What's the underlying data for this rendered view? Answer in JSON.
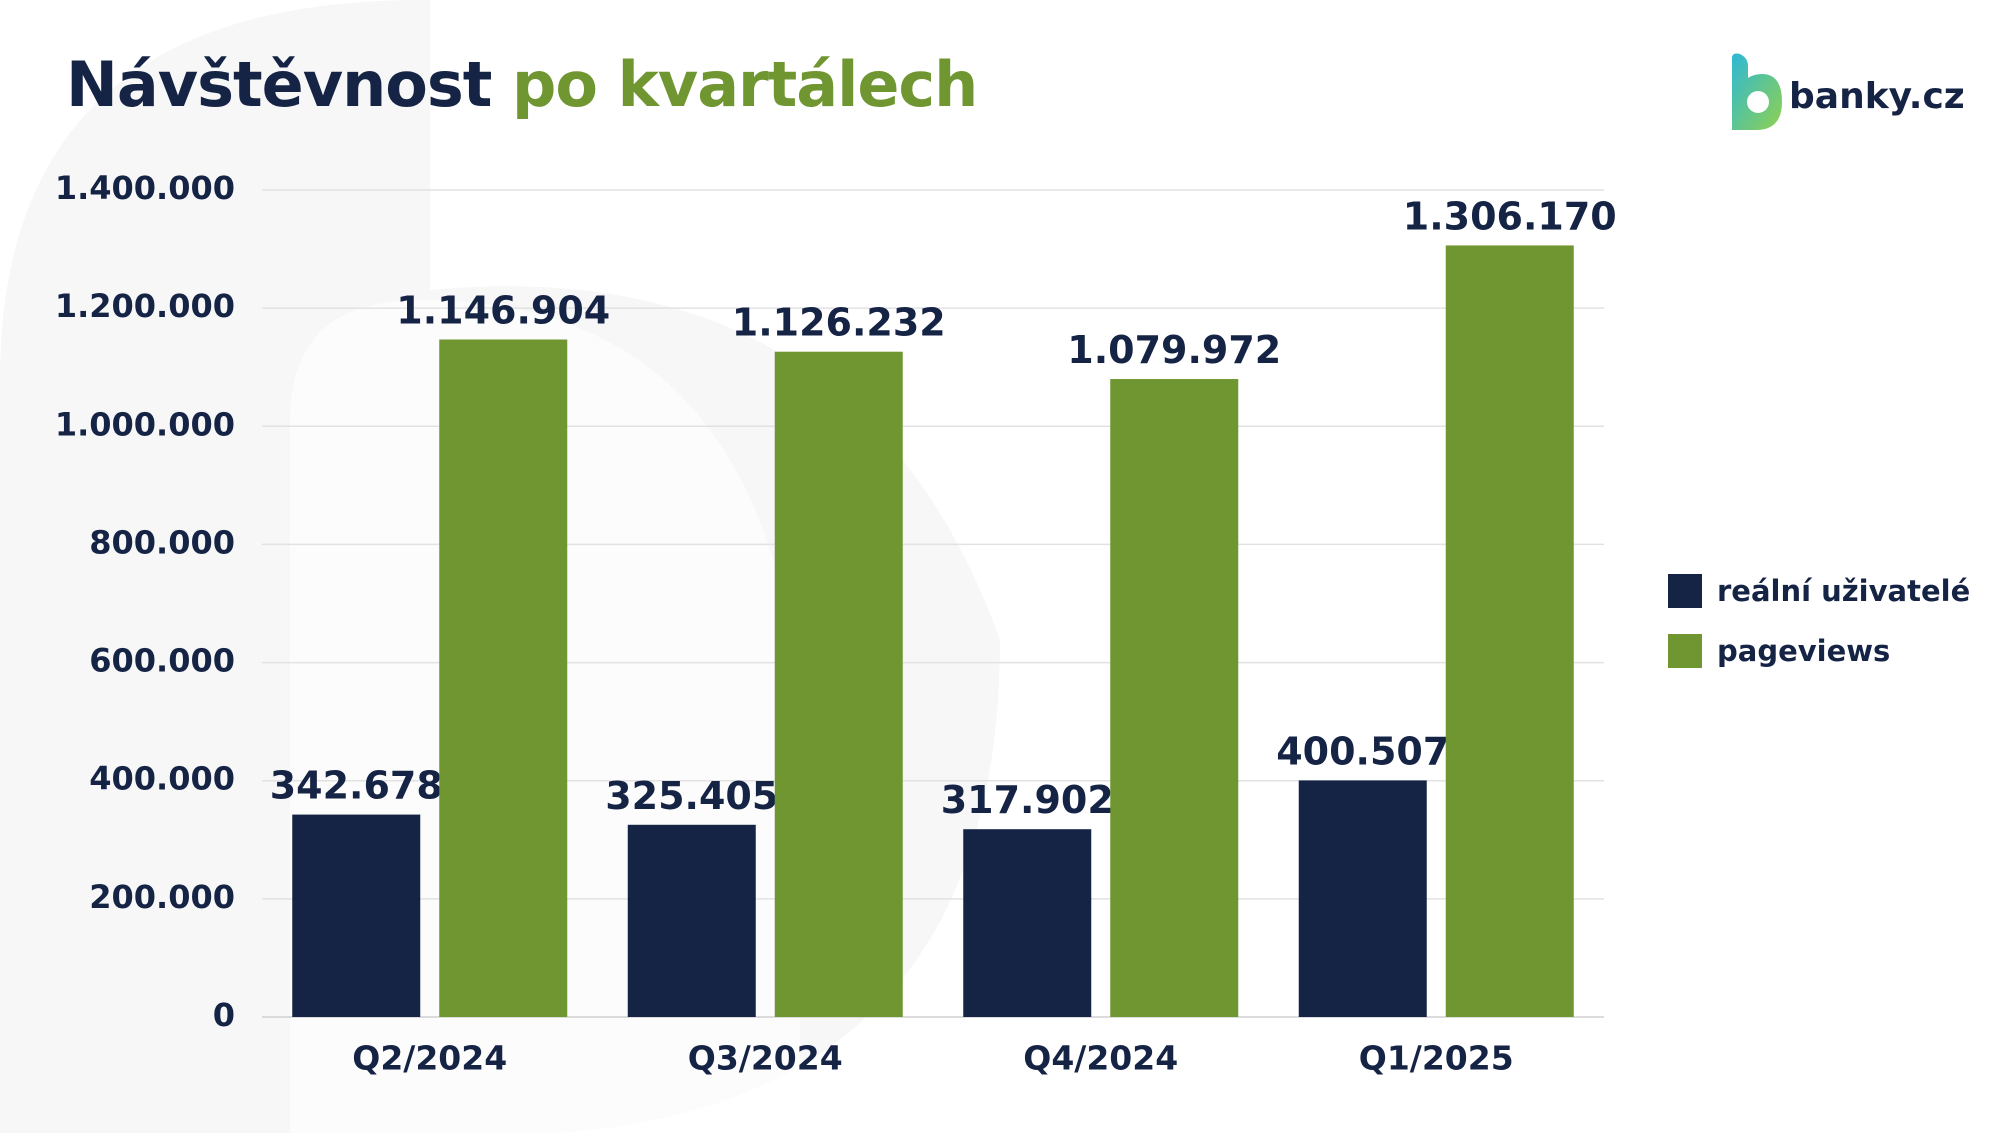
{
  "header": {
    "title_part1": "Návštěvnost",
    "title_part2": "po kvartálech"
  },
  "brand": {
    "logo_text": "banky.cz",
    "logo_icon": "banky-b-logo-icon"
  },
  "colors": {
    "navy": "#152345",
    "green": "#6f9630",
    "grid": "#e2e2e2"
  },
  "chart_data": {
    "type": "bar",
    "title": "Návštěvnost po kvartálech",
    "categories": [
      "Q2/2024",
      "Q3/2024",
      "Q4/2024",
      "Q1/2025"
    ],
    "series": [
      {
        "name": "reální uživatelé",
        "color": "#152345",
        "values": [
          342678,
          325405,
          317902,
          400507
        ],
        "labels": [
          "342.678",
          "325.405",
          "317.902",
          "400.507"
        ]
      },
      {
        "name": "pageviews",
        "color": "#6f9630",
        "values": [
          1146904,
          1126232,
          1079972,
          1306170
        ],
        "labels": [
          "1.146.904",
          "1.126.232",
          "1.079.972",
          "1.306.170"
        ]
      }
    ],
    "ylim": [
      0,
      1400000
    ],
    "yticks": [
      0,
      200000,
      400000,
      600000,
      800000,
      1000000,
      1200000,
      1400000
    ],
    "ytick_labels": [
      "0",
      "200.000",
      "400.000",
      "600.000",
      "800.000",
      "1.000.000",
      "1.200.000",
      "1.400.000"
    ],
    "grid": true,
    "legend_position": "right",
    "xlabel": "",
    "ylabel": ""
  }
}
